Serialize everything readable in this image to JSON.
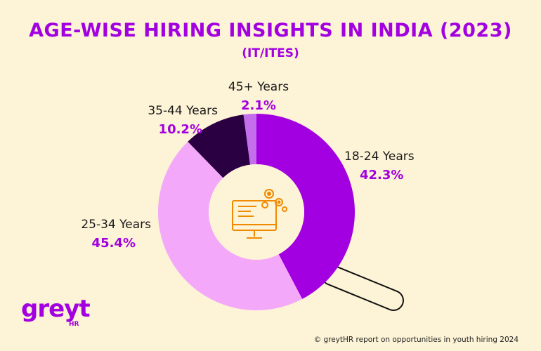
{
  "chart_data": {
    "type": "pie",
    "variant": "donut",
    "title": "AGE-WISE HIRING INSIGHTS IN INDIA (2023)",
    "subtitle": "(IT/ITES)",
    "series": [
      {
        "name": "18-24 Years",
        "value": 42.3,
        "label": "42.3%",
        "color": "#A200E0"
      },
      {
        "name": "25-34 Years",
        "value": 45.4,
        "label": "45.4%",
        "color": "#F4A8F9"
      },
      {
        "name": "35-44 Years",
        "value": 10.2,
        "label": "10.2%",
        "color": "#2A0043"
      },
      {
        "name": "45+ Years",
        "value": 2.1,
        "label": "2.1%",
        "color": "#C46EEB"
      }
    ],
    "center_icon": "computer-gears-icon",
    "decoration": "magnifying-glass-handle"
  },
  "brand": {
    "logo_text": "greyt",
    "logo_sub": "HR",
    "accent": "#A200E0"
  },
  "footer": {
    "credit": "© greytHR report on opportunities in youth hiring 2024"
  }
}
